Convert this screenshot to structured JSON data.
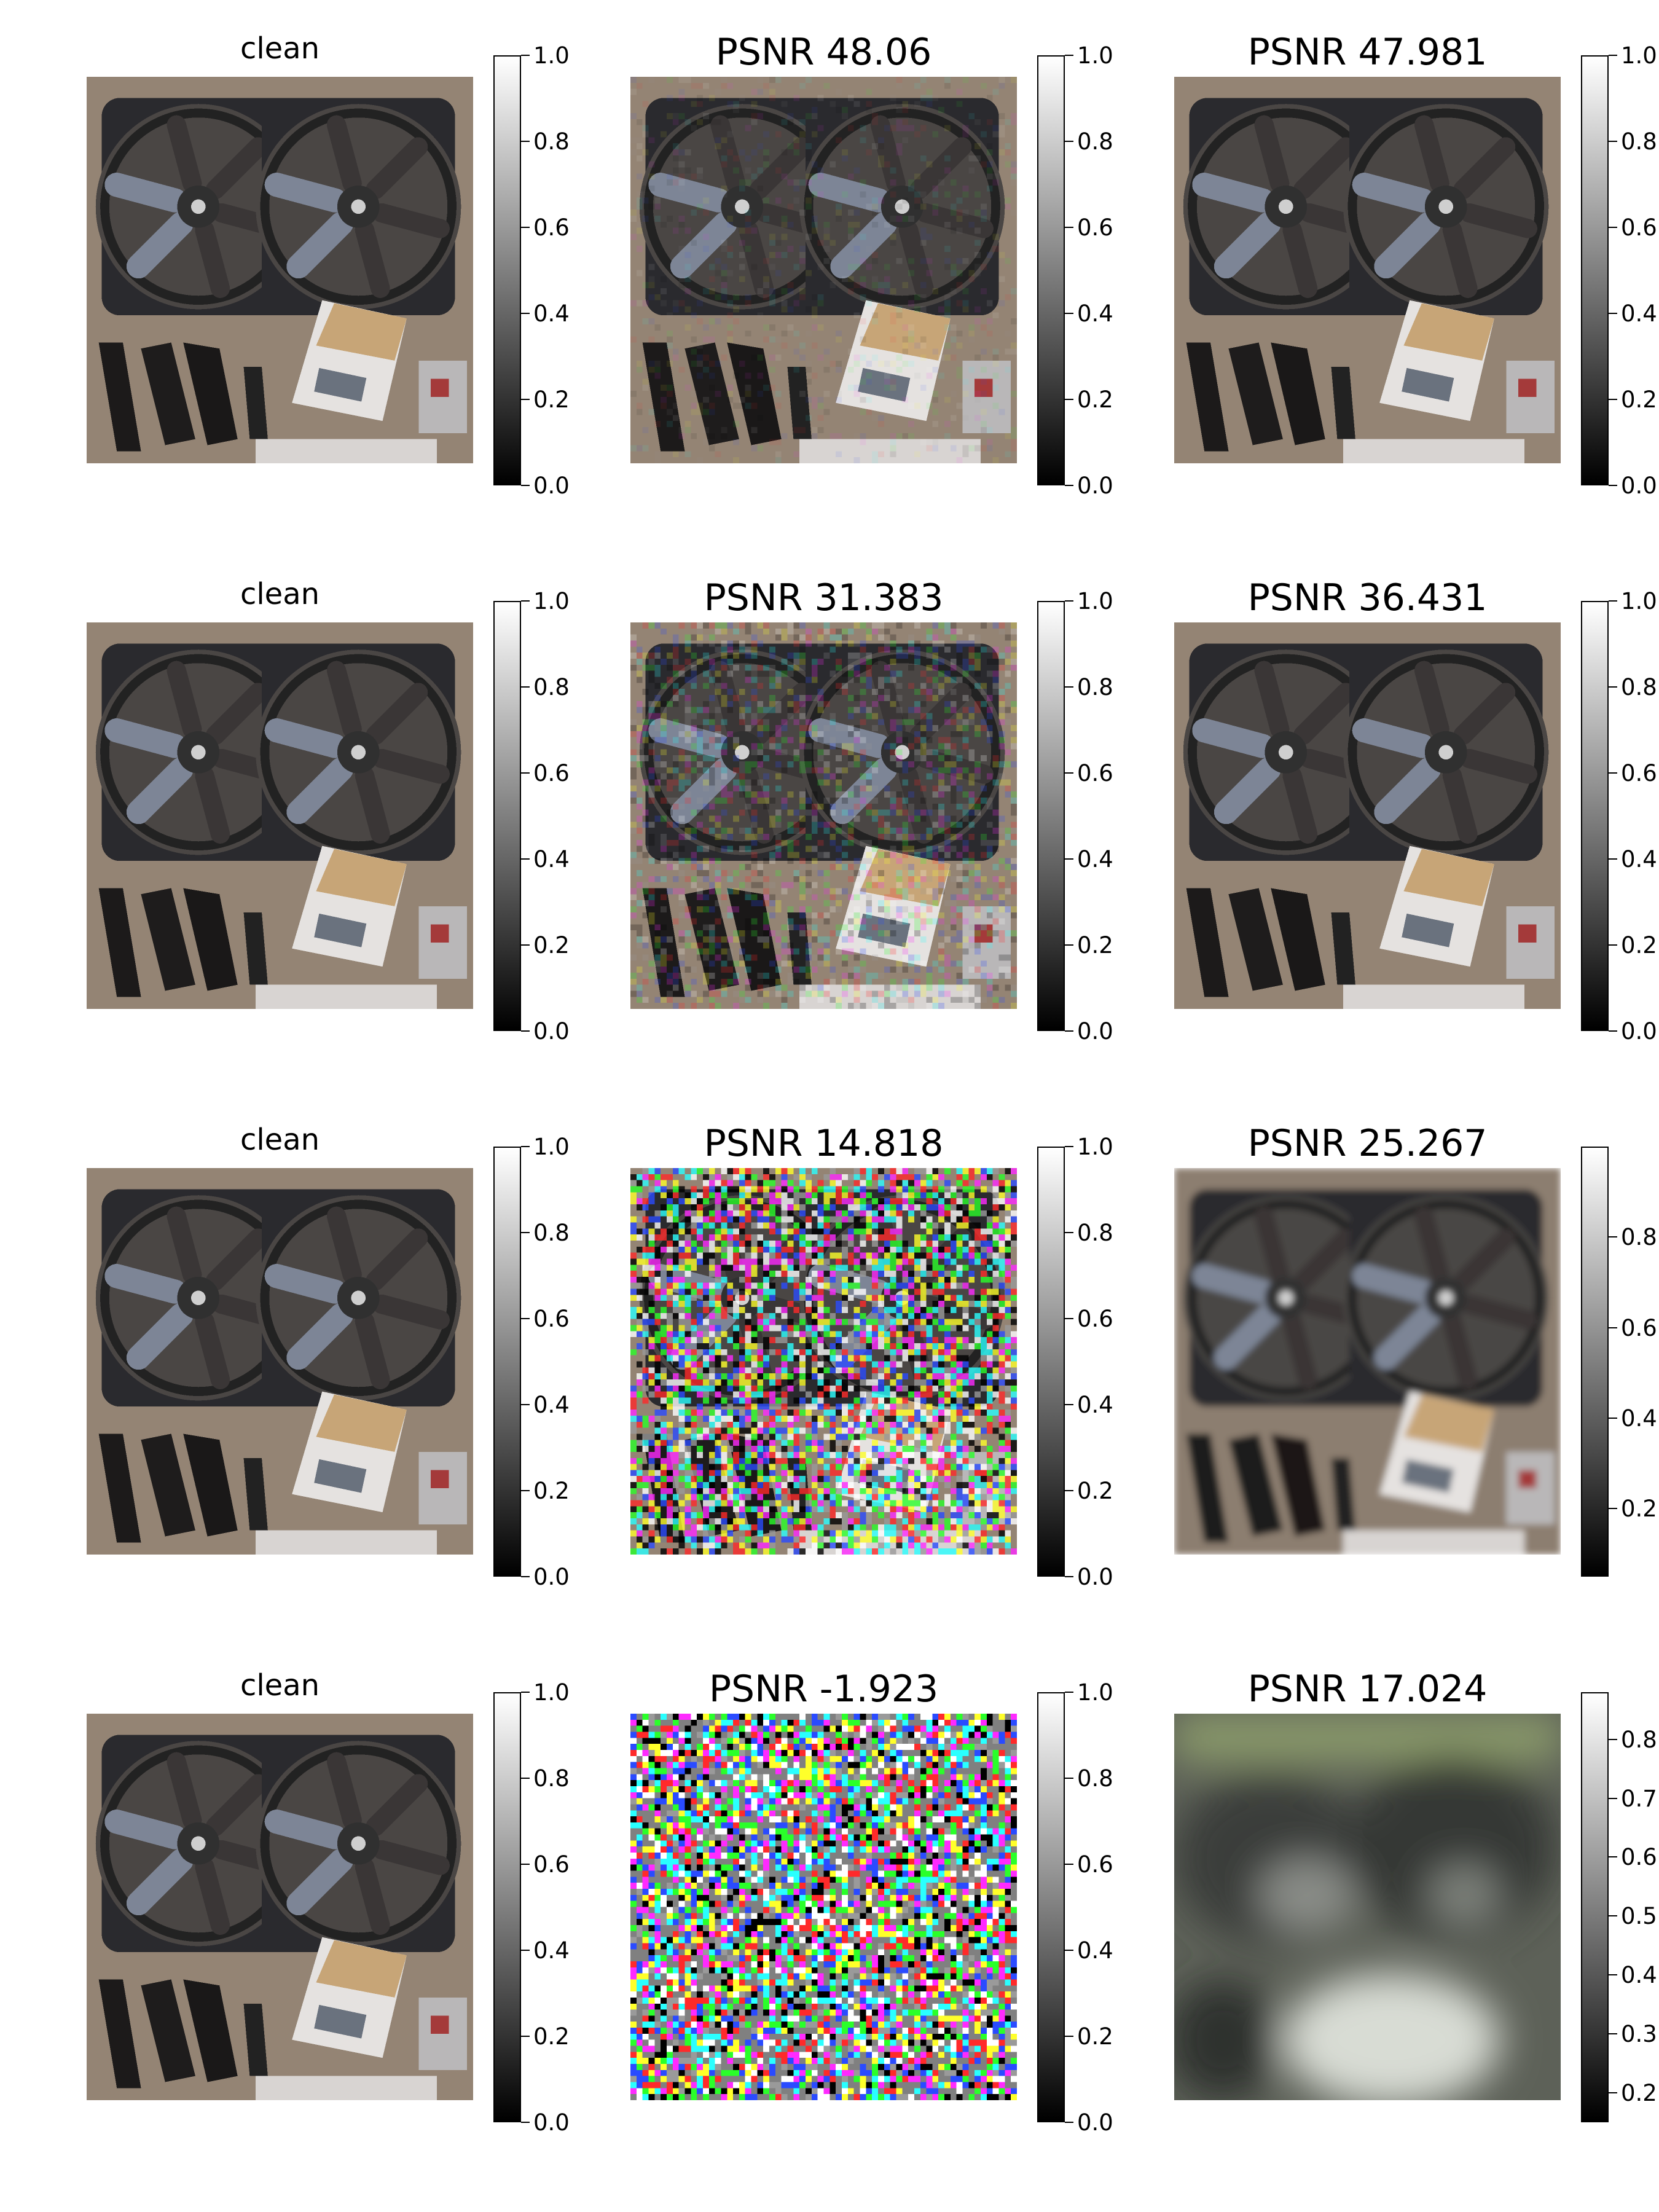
{
  "figure": {
    "rows": [
      {
        "panels": [
          {
            "title": "clean",
            "kind": "clean",
            "colorbar": {
              "ticks": [
                "0.0",
                "0.2",
                "0.4",
                "0.6",
                "0.8",
                "1.0"
              ],
              "range": [
                0,
                1
              ]
            }
          },
          {
            "title": "PSNR 48.06",
            "kind": "noisy-light",
            "colorbar": {
              "ticks": [
                "0.0",
                "0.2",
                "0.4",
                "0.6",
                "0.8",
                "1.0"
              ],
              "range": [
                0,
                1
              ]
            }
          },
          {
            "title": "PSNR 47.981",
            "kind": "denoised-clean",
            "colorbar": {
              "ticks": [
                "0.0",
                "0.2",
                "0.4",
                "0.6",
                "0.8",
                "1.0"
              ],
              "range": [
                0,
                1
              ]
            }
          }
        ]
      },
      {
        "panels": [
          {
            "title": "clean",
            "kind": "clean",
            "colorbar": {
              "ticks": [
                "0.0",
                "0.2",
                "0.4",
                "0.6",
                "0.8",
                "1.0"
              ],
              "range": [
                0,
                1
              ]
            }
          },
          {
            "title": "PSNR 31.383",
            "kind": "noisy-medium",
            "colorbar": {
              "ticks": [
                "0.0",
                "0.2",
                "0.4",
                "0.6",
                "0.8",
                "1.0"
              ],
              "range": [
                0,
                1
              ]
            }
          },
          {
            "title": "PSNR 36.431",
            "kind": "denoised-clean",
            "colorbar": {
              "ticks": [
                "0.0",
                "0.2",
                "0.4",
                "0.6",
                "0.8",
                "1.0"
              ],
              "range": [
                0,
                1
              ]
            }
          }
        ]
      },
      {
        "panels": [
          {
            "title": "clean",
            "kind": "clean",
            "colorbar": {
              "ticks": [
                "0.0",
                "0.2",
                "0.4",
                "0.6",
                "0.8",
                "1.0"
              ],
              "range": [
                0,
                1
              ]
            }
          },
          {
            "title": "PSNR 14.818",
            "kind": "noisy-heavy",
            "colorbar": {
              "ticks": [
                "0.0",
                "0.2",
                "0.4",
                "0.6",
                "0.8",
                "1.0"
              ],
              "range": [
                0,
                1
              ]
            }
          },
          {
            "title": "PSNR 25.267",
            "kind": "denoised-soft",
            "colorbar": {
              "ticks": [
                "0.2",
                "0.4",
                "0.6",
                "0.8"
              ],
              "range": [
                0.05,
                1
              ]
            }
          }
        ]
      },
      {
        "panels": [
          {
            "title": "clean",
            "kind": "clean",
            "colorbar": {
              "ticks": [
                "0.0",
                "0.2",
                "0.4",
                "0.6",
                "0.8",
                "1.0"
              ],
              "range": [
                0,
                1
              ]
            }
          },
          {
            "title": "PSNR -1.923",
            "kind": "noise-only",
            "colorbar": {
              "ticks": [
                "0.0",
                "0.2",
                "0.4",
                "0.6",
                "0.8",
                "1.0"
              ],
              "range": [
                0,
                1
              ]
            }
          },
          {
            "title": "PSNR 17.024",
            "kind": "blurred",
            "colorbar": {
              "ticks": [
                "0.2",
                "0.3",
                "0.4",
                "0.5",
                "0.6",
                "0.7",
                "0.8"
              ],
              "range": [
                0.15,
                0.88
              ]
            }
          }
        ]
      }
    ]
  }
}
